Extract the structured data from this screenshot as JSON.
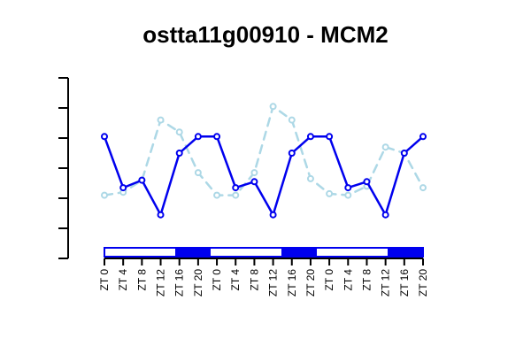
{
  "chart_data": {
    "type": "line",
    "title": "ostta11g00910 - MCM2",
    "xlabel": "",
    "ylabel": "",
    "y_tick_labels_shown": false,
    "ylim": [
      0,
      6
    ],
    "yticks": [
      0,
      1,
      2,
      3,
      4,
      5,
      6
    ],
    "categories": [
      "ZT 0",
      "ZT 4",
      "ZT 8",
      "ZT 12",
      "ZT 16",
      "ZT 20",
      "ZT 0",
      "ZT 4",
      "ZT 8",
      "ZT 12",
      "ZT 16",
      "ZT 20",
      "ZT 0",
      "ZT 4",
      "ZT 8",
      "ZT 12",
      "ZT 16",
      "ZT 20"
    ],
    "series": [
      {
        "color": "#0000ee",
        "line_style": "solid",
        "marker": "open-circle",
        "values": [
          4.05,
          2.35,
          2.6,
          1.45,
          3.5,
          4.05,
          4.05,
          2.35,
          2.55,
          1.45,
          3.5,
          4.05,
          4.05,
          2.35,
          2.55,
          1.45,
          3.5,
          4.05
        ]
      },
      {
        "color": "#add8e6",
        "line_style": "dashed",
        "marker": "open-circle",
        "values": [
          2.1,
          2.2,
          2.6,
          4.6,
          4.2,
          2.85,
          2.1,
          2.1,
          2.85,
          5.05,
          4.6,
          2.65,
          2.15,
          2.1,
          2.4,
          3.7,
          3.5,
          2.35
        ]
      }
    ],
    "light_dark_bar": {
      "light_color": "#ffffff",
      "dark_color": "#0000ee",
      "border_color": "#0000ee",
      "pattern": [
        "light",
        "light",
        "light",
        "light",
        "dark",
        "dark",
        "light",
        "light",
        "light",
        "light",
        "dark",
        "dark",
        "light",
        "light",
        "light",
        "light",
        "dark",
        "dark"
      ]
    },
    "grid": false,
    "legend": "none"
  }
}
